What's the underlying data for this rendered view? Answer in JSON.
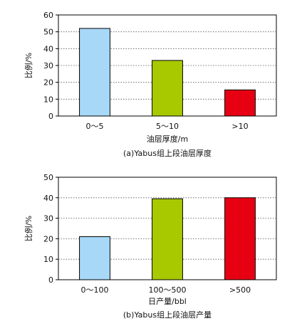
{
  "chart_data": [
    {
      "type": "bar",
      "categories": [
        "0～5",
        "5～10",
        ">10"
      ],
      "values": [
        52,
        33,
        15.5
      ],
      "colors": [
        "#a8d8f8",
        "#a8c800",
        "#e60012"
      ],
      "ylabel": "比例/%",
      "xlabel": "油层厚度/m",
      "caption": "(a)Yabus组上段油层厚度",
      "ylim": [
        0,
        60
      ],
      "yticks": [
        0,
        10,
        20,
        30,
        40,
        50,
        60
      ],
      "grid": "dotted horizontal"
    },
    {
      "type": "bar",
      "categories": [
        "0～100",
        "100～500",
        ">500"
      ],
      "values": [
        21,
        39.5,
        40
      ],
      "colors": [
        "#a8d8f8",
        "#a8c800",
        "#e60012"
      ],
      "ylabel": "比例/%",
      "xlabel": "日产量/bbl",
      "caption": "(b)Yabus组上段油层产量",
      "ylim": [
        0,
        50
      ],
      "yticks": [
        0,
        10,
        20,
        30,
        40,
        50
      ],
      "grid": "dotted horizontal"
    }
  ]
}
